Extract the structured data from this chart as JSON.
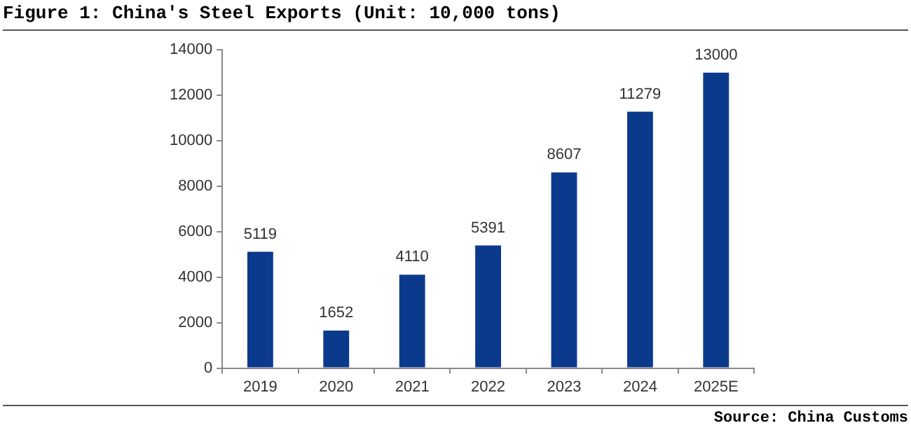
{
  "chart_data": {
    "type": "bar",
    "title": "Figure 1: China's Steel Exports (Unit: 10,000 tons)",
    "categories": [
      "2019",
      "2020",
      "2021",
      "2022",
      "2023",
      "2024",
      "2025E"
    ],
    "values": [
      5119,
      1652,
      4110,
      5391,
      8607,
      11279,
      13000
    ],
    "color": "#0b3a8c",
    "ylim": [
      0,
      14000
    ],
    "yticks": [
      0,
      2000,
      4000,
      6000,
      8000,
      10000,
      12000,
      14000
    ],
    "grid": false,
    "legend": false,
    "data_labels": true,
    "annotations": [
      "Source: China Customs"
    ]
  }
}
